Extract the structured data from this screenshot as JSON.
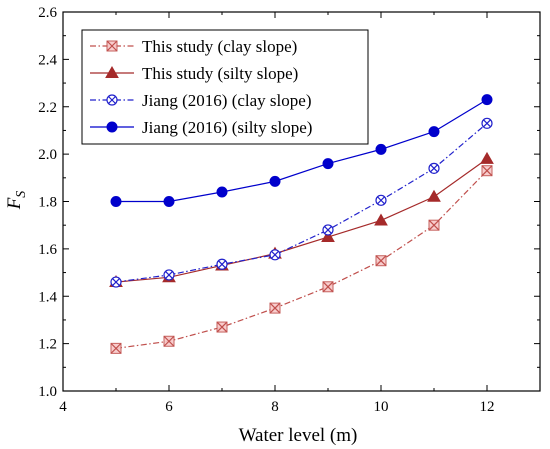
{
  "chart_data": {
    "type": "line",
    "xlabel": "Water level (m)",
    "ylabel_main": "F",
    "ylabel_sub": "S",
    "xlim": [
      4,
      13
    ],
    "ylim": [
      1.0,
      2.6
    ],
    "xticks": [
      4,
      6,
      8,
      10,
      12
    ],
    "yticks": [
      1.0,
      1.2,
      1.4,
      1.6,
      1.8,
      2.0,
      2.2,
      2.4,
      2.6
    ],
    "grid": false,
    "legend_position": "top-left",
    "x": [
      5,
      6,
      7,
      8,
      9,
      10,
      11,
      12
    ],
    "series": [
      {
        "name": "This study (clay slope)",
        "values": [
          1.18,
          1.21,
          1.27,
          1.35,
          1.44,
          1.55,
          1.7,
          1.93
        ],
        "color": "#c0504d",
        "marker": "x-square",
        "line": "dash-dot"
      },
      {
        "name": "This study (silty slope)",
        "values": [
          1.46,
          1.48,
          1.53,
          1.58,
          1.65,
          1.72,
          1.82,
          1.98
        ],
        "color": "#a52a2a",
        "marker": "triangle",
        "line": "solid"
      },
      {
        "name": "Jiang (2016) (clay slope)",
        "values": [
          1.46,
          1.49,
          1.535,
          1.575,
          1.68,
          1.805,
          1.94,
          2.13
        ],
        "color": "#2222cc",
        "marker": "x-circle",
        "line": "dash-dot"
      },
      {
        "name": "Jiang (2016) (silty slope)",
        "values": [
          1.8,
          1.8,
          1.84,
          1.885,
          1.96,
          2.02,
          2.095,
          2.23
        ],
        "color": "#0000cc",
        "marker": "circle",
        "line": "solid"
      }
    ]
  }
}
